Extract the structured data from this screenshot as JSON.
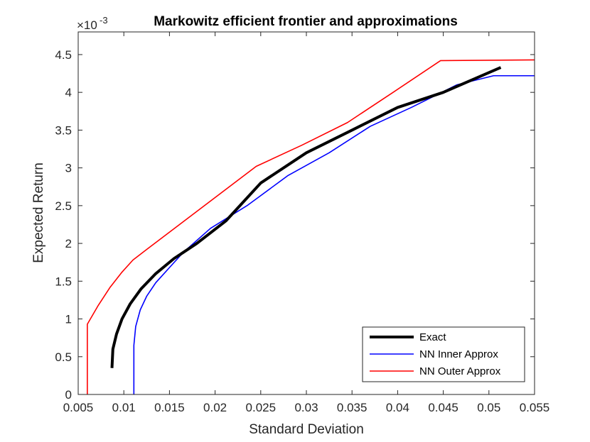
{
  "chart_data": {
    "type": "line",
    "title": "Markowitz efficient frontier and approximations",
    "xlabel": "Standard Deviation",
    "ylabel": "Expected Return",
    "y_exponent_label": "×10",
    "y_exponent_power": "-3",
    "xlim": [
      0.005,
      0.055
    ],
    "ylim": [
      0,
      0.0048
    ],
    "x_ticks": [
      0.005,
      0.01,
      0.015,
      0.02,
      0.025,
      0.03,
      0.035,
      0.04,
      0.045,
      0.05,
      0.055
    ],
    "x_tick_labels": [
      "0.005",
      "0.01",
      "0.015",
      "0.02",
      "0.025",
      "0.03",
      "0.035",
      "0.04",
      "0.045",
      "0.05",
      "0.055"
    ],
    "y_ticks": [
      0,
      0.0005,
      0.001,
      0.0015,
      0.002,
      0.0025,
      0.003,
      0.0035,
      0.004,
      0.0045
    ],
    "y_tick_labels": [
      "0",
      "0.5",
      "1",
      "1.5",
      "2",
      "2.5",
      "3",
      "3.5",
      "4",
      "4.5"
    ],
    "grid": false,
    "legend_position": "bottom-right",
    "series": [
      {
        "name": "Exact",
        "color": "#000000",
        "width": 4,
        "x": [
          0.0087,
          0.0088,
          0.0092,
          0.0098,
          0.0107,
          0.0119,
          0.0135,
          0.0155,
          0.018,
          0.0212,
          0.025,
          0.03,
          0.035,
          0.04,
          0.045,
          0.0513
        ],
        "y": [
          0.00035,
          0.0006,
          0.0008,
          0.001,
          0.0012,
          0.0014,
          0.0016,
          0.0018,
          0.002,
          0.0023,
          0.0028,
          0.0032,
          0.0035,
          0.0038,
          0.004,
          0.00433
        ]
      },
      {
        "name": "NN Inner Approx",
        "color": "#0000ff",
        "width": 1.6,
        "x": [
          0.0111,
          0.0111,
          0.0113,
          0.0118,
          0.0125,
          0.0135,
          0.015,
          0.0165,
          0.0195,
          0.0235,
          0.028,
          0.0325,
          0.037,
          0.0415,
          0.0465,
          0.0505,
          0.055
        ],
        "y": [
          0,
          0.00065,
          0.0009,
          0.00112,
          0.0013,
          0.00148,
          0.00168,
          0.00188,
          0.0022,
          0.0025,
          0.0029,
          0.0032,
          0.00355,
          0.0038,
          0.0041,
          0.00422,
          0.00422
        ]
      },
      {
        "name": "NN Outer Approx",
        "color": "#ff0000",
        "width": 1.6,
        "x": [
          0.006,
          0.006,
          0.0072,
          0.0085,
          0.0098,
          0.011,
          0.0125,
          0.0245,
          0.0295,
          0.0345,
          0.0395,
          0.0447,
          0.055
        ],
        "y": [
          0,
          0.00093,
          0.00118,
          0.00142,
          0.00162,
          0.00178,
          0.00192,
          0.00302,
          0.0033,
          0.0036,
          0.004,
          0.00442,
          0.00443
        ]
      }
    ]
  }
}
